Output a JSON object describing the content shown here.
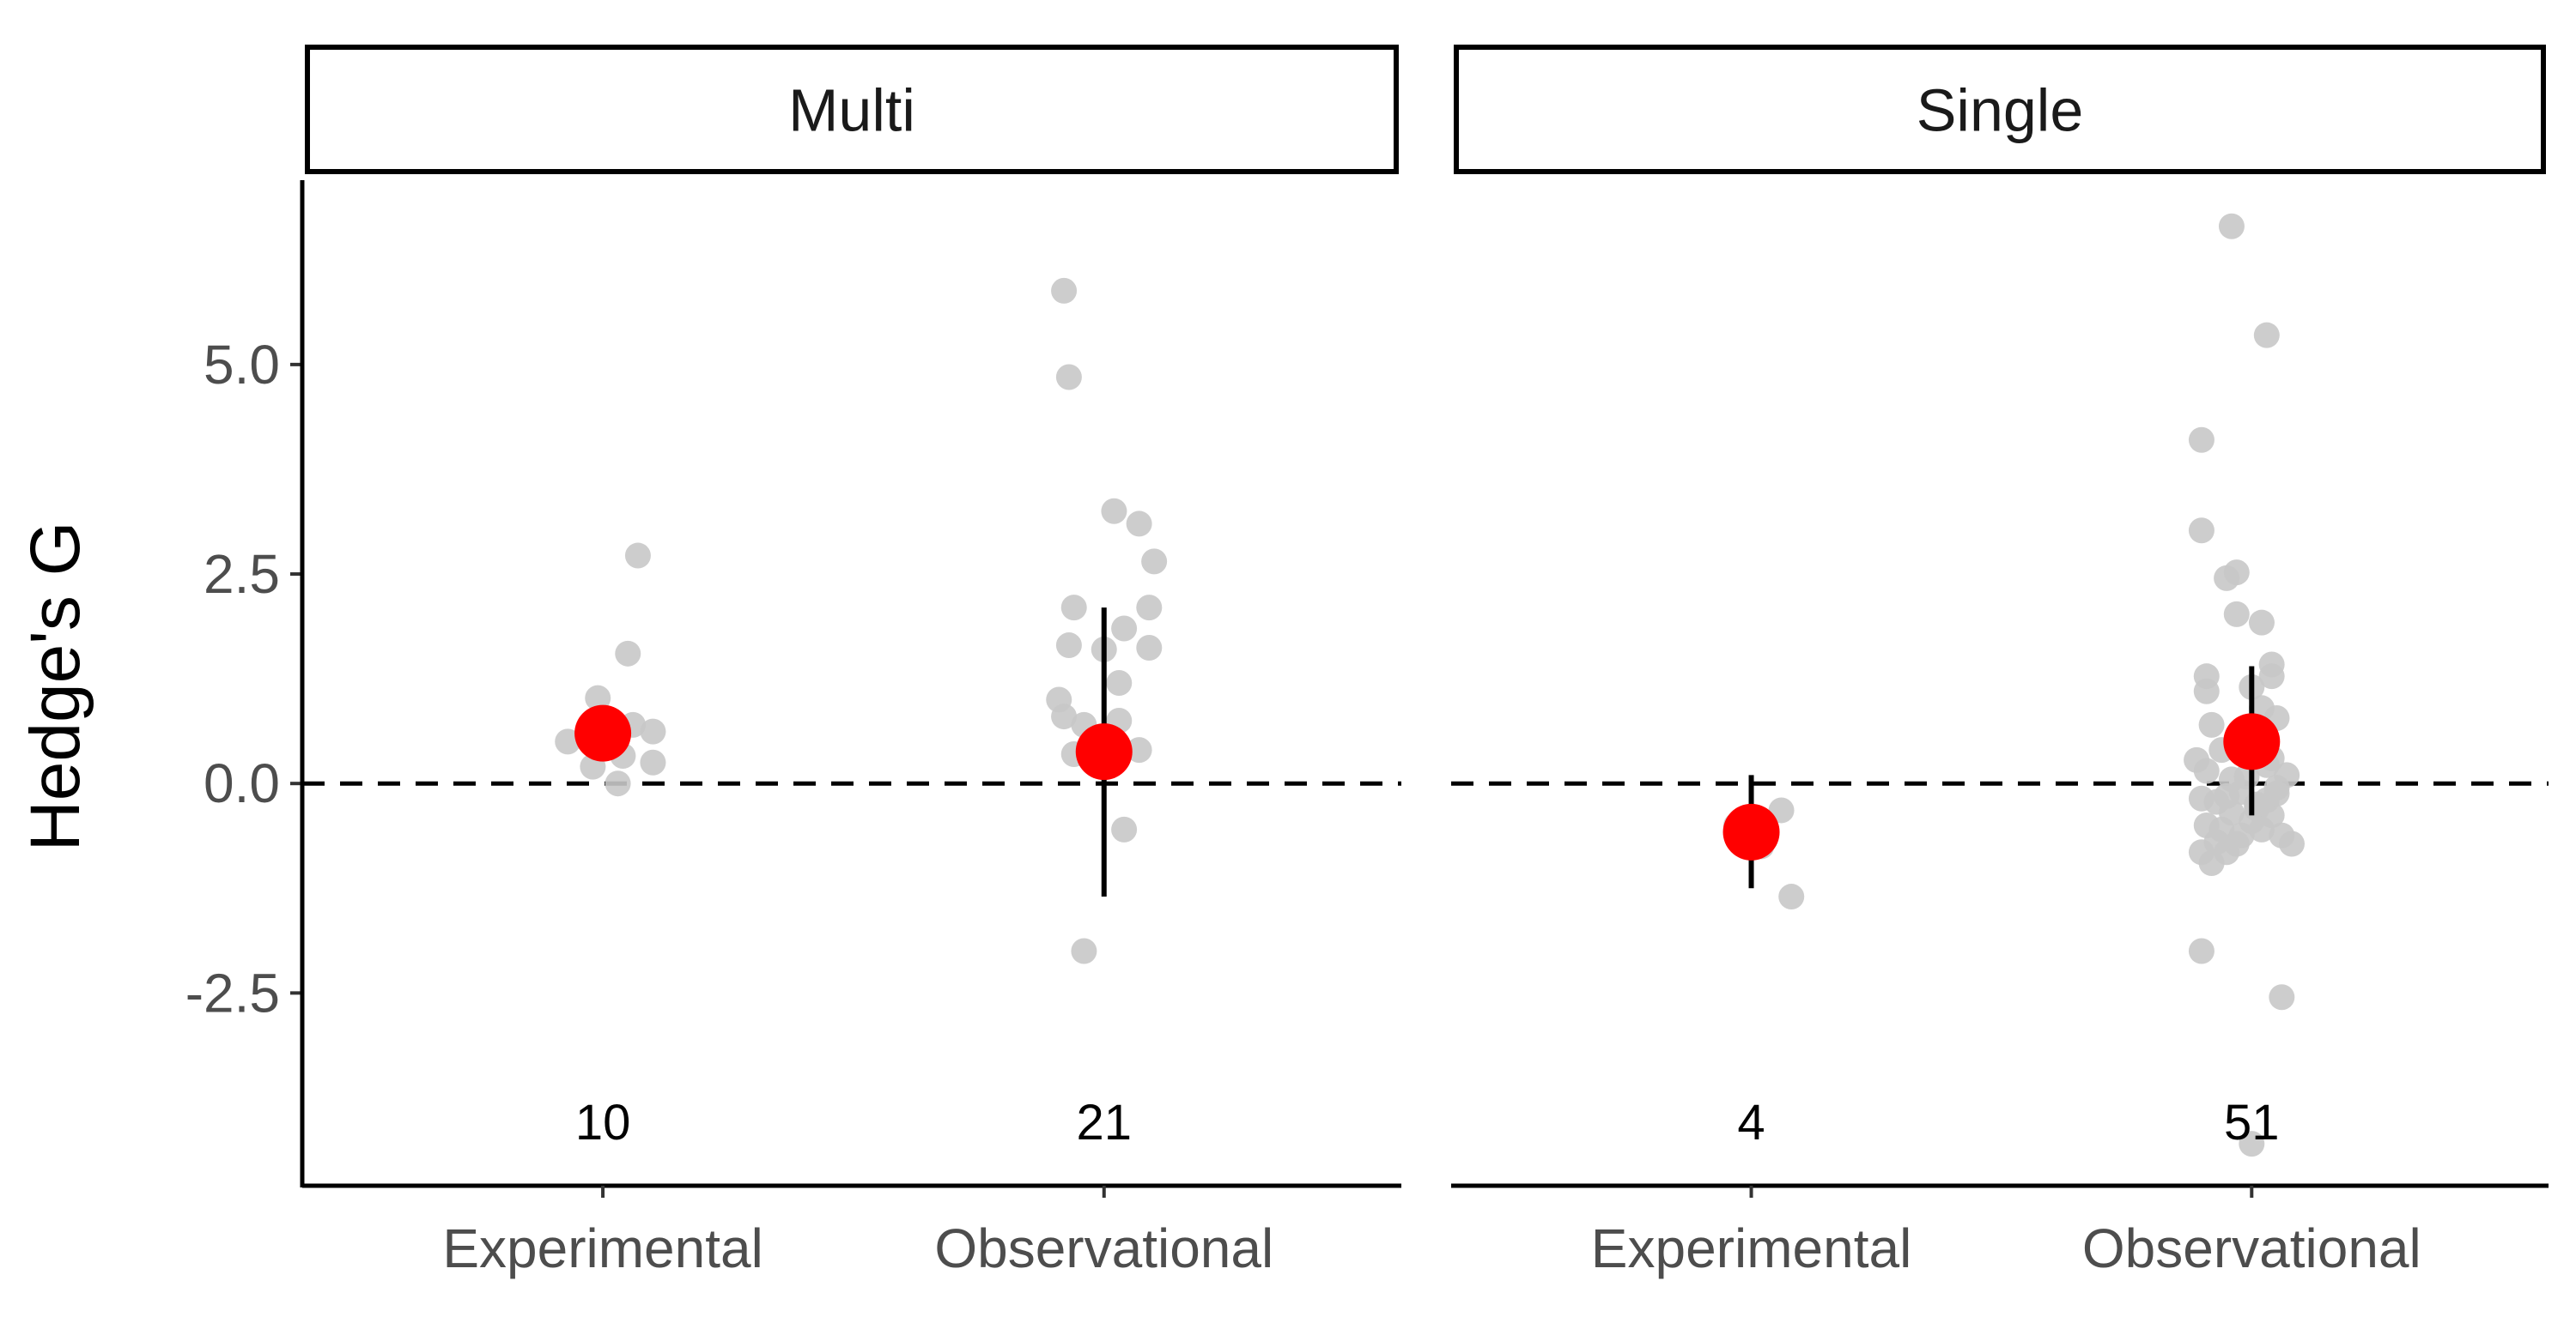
{
  "chart_data": {
    "type": "scatter",
    "ylabel": "Hedge's G",
    "ylim": [
      -4.8,
      7.2
    ],
    "y_ticks": [
      {
        "value": -2.5,
        "label": "-2.5"
      },
      {
        "value": 0,
        "label": "0.0"
      },
      {
        "value": 2.5,
        "label": "2.5"
      },
      {
        "value": 5,
        "label": "5.0"
      }
    ],
    "reference_line": {
      "y": 0,
      "style": "dashed"
    },
    "point_color": "#c8c8c8",
    "mean_color": "#ff0000",
    "errorbar_color": "#000000",
    "categories": [
      "Experimental",
      "Observational"
    ],
    "panels": [
      {
        "name": "Multi",
        "groups": [
          {
            "category": "Experimental",
            "n_label": "10",
            "mean": 0.6,
            "ci": [
              0.35,
              0.85
            ],
            "points": [
              {
                "dx": 0.07,
                "y": 2.72
              },
              {
                "dx": 0.05,
                "y": 1.55
              },
              {
                "dx": -0.01,
                "y": 1.02
              },
              {
                "dx": -0.07,
                "y": 0.5
              },
              {
                "dx": 0.1,
                "y": 0.62
              },
              {
                "dx": 0.06,
                "y": 0.7
              },
              {
                "dx": 0.04,
                "y": 0.33
              },
              {
                "dx": 0.1,
                "y": 0.25
              },
              {
                "dx": -0.02,
                "y": 0.2
              },
              {
                "dx": 0.03,
                "y": 0.0
              }
            ]
          },
          {
            "category": "Observational",
            "n_label": "21",
            "mean": 0.38,
            "ci": [
              -1.35,
              2.1
            ],
            "points": [
              {
                "dx": -0.08,
                "y": 5.88
              },
              {
                "dx": -0.07,
                "y": 4.85
              },
              {
                "dx": 0.02,
                "y": 3.25
              },
              {
                "dx": 0.07,
                "y": 3.1
              },
              {
                "dx": 0.1,
                "y": 2.65
              },
              {
                "dx": -0.06,
                "y": 2.1
              },
              {
                "dx": 0.09,
                "y": 2.1
              },
              {
                "dx": 0.04,
                "y": 1.85
              },
              {
                "dx": -0.07,
                "y": 1.65
              },
              {
                "dx": 0.09,
                "y": 1.62
              },
              {
                "dx": 0.0,
                "y": 1.6
              },
              {
                "dx": 0.03,
                "y": 1.2
              },
              {
                "dx": -0.09,
                "y": 1.0
              },
              {
                "dx": -0.08,
                "y": 0.8
              },
              {
                "dx": -0.04,
                "y": 0.7
              },
              {
                "dx": 0.03,
                "y": 0.75
              },
              {
                "dx": -0.06,
                "y": 0.35
              },
              {
                "dx": 0.07,
                "y": 0.4
              },
              {
                "dx": 0.0,
                "y": 0.3
              },
              {
                "dx": 0.04,
                "y": -0.55
              },
              {
                "dx": -0.04,
                "y": -2.0
              }
            ]
          }
        ]
      },
      {
        "name": "Single",
        "groups": [
          {
            "category": "Experimental",
            "n_label": "4",
            "mean": -0.58,
            "ci": [
              -1.25,
              0.1
            ],
            "points": [
              {
                "dx": 0.06,
                "y": -0.32
              },
              {
                "dx": 0.08,
                "y": -1.35
              },
              {
                "dx": -0.03,
                "y": -0.5
              },
              {
                "dx": 0.02,
                "y": -0.75
              }
            ]
          },
          {
            "category": "Observational",
            "n_label": "51",
            "mean": 0.5,
            "ci": [
              -0.38,
              1.4
            ],
            "points": [
              {
                "dx": -0.04,
                "y": 6.65
              },
              {
                "dx": 0.03,
                "y": 5.35
              },
              {
                "dx": -0.1,
                "y": 4.1
              },
              {
                "dx": -0.1,
                "y": 3.02
              },
              {
                "dx": -0.03,
                "y": 2.52
              },
              {
                "dx": -0.05,
                "y": 2.45
              },
              {
                "dx": -0.03,
                "y": 2.02
              },
              {
                "dx": 0.02,
                "y": 1.92
              },
              {
                "dx": 0.04,
                "y": 1.42
              },
              {
                "dx": 0.04,
                "y": 1.28
              },
              {
                "dx": -0.09,
                "y": 1.28
              },
              {
                "dx": 0.0,
                "y": 1.15
              },
              {
                "dx": -0.09,
                "y": 1.1
              },
              {
                "dx": 0.05,
                "y": 0.78
              },
              {
                "dx": 0.02,
                "y": 0.9
              },
              {
                "dx": -0.08,
                "y": 0.7
              },
              {
                "dx": 0.0,
                "y": 0.6
              },
              {
                "dx": -0.11,
                "y": 0.28
              },
              {
                "dx": -0.09,
                "y": 0.15
              },
              {
                "dx": 0.03,
                "y": 0.22
              },
              {
                "dx": -0.04,
                "y": 0.05
              },
              {
                "dx": 0.05,
                "y": -0.05
              },
              {
                "dx": -0.02,
                "y": -0.1
              },
              {
                "dx": -0.1,
                "y": -0.18
              },
              {
                "dx": -0.07,
                "y": -0.22
              },
              {
                "dx": 0.03,
                "y": -0.2
              },
              {
                "dx": 0.01,
                "y": -0.3
              },
              {
                "dx": -0.04,
                "y": -0.35
              },
              {
                "dx": 0.04,
                "y": -0.38
              },
              {
                "dx": -0.09,
                "y": -0.5
              },
              {
                "dx": -0.06,
                "y": -0.55
              },
              {
                "dx": -0.02,
                "y": -0.62
              },
              {
                "dx": -0.07,
                "y": -0.7
              },
              {
                "dx": -0.03,
                "y": -0.72
              },
              {
                "dx": 0.06,
                "y": -0.62
              },
              {
                "dx": 0.08,
                "y": -0.72
              },
              {
                "dx": -0.1,
                "y": -0.82
              },
              {
                "dx": -0.05,
                "y": -0.82
              },
              {
                "dx": -0.08,
                "y": -0.95
              },
              {
                "dx": 0.0,
                "y": -0.45
              },
              {
                "dx": 0.02,
                "y": -0.55
              },
              {
                "dx": 0.05,
                "y": -0.12
              },
              {
                "dx": -0.01,
                "y": 0.08
              },
              {
                "dx": 0.04,
                "y": 0.3
              },
              {
                "dx": -0.06,
                "y": 0.4
              },
              {
                "dx": 0.07,
                "y": 0.1
              },
              {
                "dx": -0.05,
                "y": -0.15
              },
              {
                "dx": 0.0,
                "y": -4.3
              },
              {
                "dx": -0.1,
                "y": -2.0
              },
              {
                "dx": 0.06,
                "y": -2.55
              },
              {
                "dx": 0.01,
                "y": -0.25
              }
            ]
          }
        ]
      }
    ]
  }
}
